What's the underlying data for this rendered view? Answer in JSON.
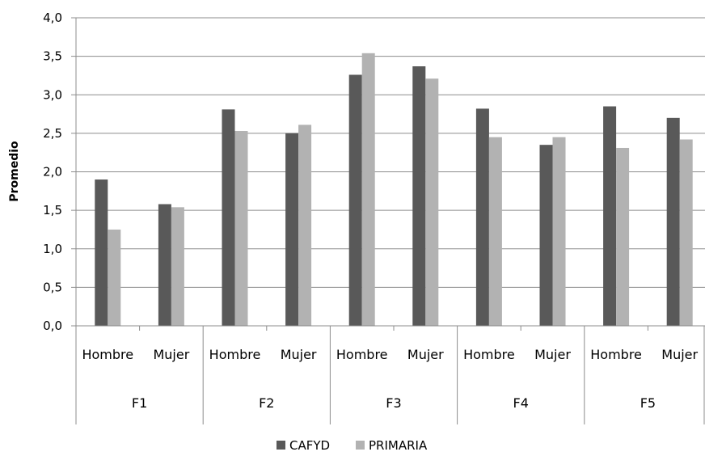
{
  "chart_data": {
    "type": "bar",
    "title": "",
    "xlabel": "",
    "ylabel": "Promedio",
    "ylim": [
      0,
      4
    ],
    "yticks": [
      "0,0",
      "0,5",
      "1,0",
      "1,5",
      "2,0",
      "2,5",
      "3,0",
      "3,5",
      "4,0"
    ],
    "grid": true,
    "legend_position": "bottom",
    "groups": [
      "F1",
      "F2",
      "F3",
      "F4",
      "F5"
    ],
    "subcategories": [
      "Hombre",
      "Mujer"
    ],
    "categories": [
      "F1 Hombre",
      "F1 Mujer",
      "F2 Hombre",
      "F2 Mujer",
      "F3 Hombre",
      "F3 Mujer",
      "F4 Hombre",
      "F4 Mujer",
      "F5 Hombre",
      "F5 Mujer"
    ],
    "series": [
      {
        "name": "CAFYD",
        "color": "#595959",
        "values": [
          1.9,
          1.58,
          2.81,
          2.5,
          3.26,
          3.37,
          2.82,
          2.35,
          2.85,
          2.7
        ]
      },
      {
        "name": "PRIMARIA",
        "color": "#b2b2b2",
        "values": [
          1.25,
          1.54,
          2.53,
          2.61,
          3.54,
          3.21,
          2.45,
          2.45,
          2.31,
          2.42
        ]
      }
    ]
  }
}
